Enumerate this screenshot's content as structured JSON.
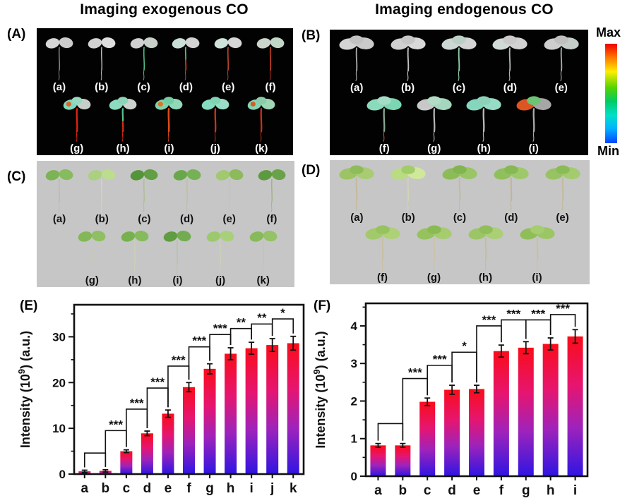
{
  "titles": {
    "left": "Imaging exogenous CO",
    "right": "Imaging endogenous CO"
  },
  "colorbar": {
    "max": "Max",
    "min": "Min",
    "stops": [
      "#ee0000 0%",
      "#ff7700 14%",
      "#ffee00 28%",
      "#55d400 44%",
      "#00cc66 58%",
      "#00e0c8 72%",
      "#00b4ff 85%",
      "#0044ff 100%"
    ]
  },
  "panels": {
    "a": {
      "letter": "(A)",
      "bg": "#020202",
      "label_color": "#ffffff",
      "rows": [
        [
          {
            "label": "(a)",
            "leaves": [
              "#d6d6d6",
              "#cbcbcb"
            ],
            "stem": "#8f8f8f",
            "sw": 1.6
          },
          {
            "label": "(b)",
            "leaves": [
              "#d2d2d2",
              "#dedede"
            ],
            "stem": "#c6c6c6",
            "sw": 1.6
          },
          {
            "label": "(c)",
            "leaves": [
              "#d0d0d0",
              "#c9cfc9"
            ],
            "stem": "#4fc08a",
            "sw": 1.8
          },
          {
            "label": "(d)",
            "leaves": [
              "#c8ded6",
              "#d2d2d2"
            ],
            "stem": "#cf3f22",
            "stem2": "#55bd85",
            "sw": 2.0
          },
          {
            "label": "(e)",
            "leaves": [
              "#cfe2da",
              "#d6d6d6"
            ],
            "stem": "#b8422b",
            "sw": 2.0
          },
          {
            "label": "(f)",
            "leaves": [
              "#ccd4cc",
              "#c2d6c8"
            ],
            "stem": "#c23b24",
            "sw": 2.0
          }
        ],
        [
          {
            "label": "(g)",
            "leaves": [
              "#7fd9bd",
              "#c7cdc9",
              "#96d9c0"
            ],
            "stem": "#e02414",
            "spot": "#e05c20",
            "sw": 2.6
          },
          {
            "label": "(h)",
            "leaves": [
              "#8cdcc2",
              "#ccd2ce",
              "#8ed4b8"
            ],
            "stem": "#d52a16",
            "stem2": "#58c088",
            "sw": 2.6
          },
          {
            "label": "(i)",
            "leaves": [
              "#7ed2ac",
              "#90d8b8",
              "#74cca4"
            ],
            "stem": "#e04a14",
            "spot": "#e0701e",
            "sw": 2.8
          },
          {
            "label": "(j)",
            "leaves": [
              "#85dcbe",
              "#9cdcc6",
              "#7fd4b4"
            ],
            "stem": "#d93016",
            "sw": 2.6
          },
          {
            "label": "(k)",
            "leaves": [
              "#82d6b6",
              "#9ed8b2",
              "#8accaa"
            ],
            "stem": "#cf3018",
            "spot": "#d9561c",
            "sw": 2.6
          }
        ]
      ]
    },
    "b": {
      "letter": "(B)",
      "bg": "#020202",
      "label_color": "#ffffff",
      "rows": [
        [
          {
            "label": "(a)",
            "leaves": [
              "#d4d4d4",
              "#cacaca",
              "#c2c2c2"
            ],
            "stem": "#a8a8a8",
            "sw": 1.8,
            "big": true
          },
          {
            "label": "(b)",
            "leaves": [
              "#d0d0d0",
              "#d8d8d8",
              "#c6c6c6"
            ],
            "stem": "#c2c2c2",
            "sw": 1.8,
            "big": true
          },
          {
            "label": "(c)",
            "leaves": [
              "#ccd6d2",
              "#d4d4d4",
              "#bccfc6"
            ],
            "stem": "#8fcbaa",
            "sw": 1.8,
            "big": true
          },
          {
            "label": "(d)",
            "leaves": [
              "#d0dad6",
              "#d2d2d2",
              "#cacaca"
            ],
            "stem": "#b4b4b4",
            "sw": 1.8,
            "big": true
          },
          {
            "label": "(e)",
            "leaves": [
              "#cecece",
              "#c6cec9",
              "#c0c0c0"
            ],
            "stem": "#acacac",
            "sw": 1.8,
            "big": true
          }
        ],
        [
          {
            "label": "(f)",
            "leaves": [
              "#8adabc",
              "#7cd6b4",
              "#a4dcc6"
            ],
            "stem": "#88a894",
            "root": "#b8512a",
            "sw": 2.2,
            "big": true
          },
          {
            "label": "(g)",
            "leaves": [
              "#c8c8c8",
              "#a4d6c0",
              "#b2dcc6"
            ],
            "stem": "#b4b4b4",
            "sw": 2.2,
            "big": true
          },
          {
            "label": "(h)",
            "leaves": [
              "#84d6bc",
              "#96dcc6",
              "#8cd2b8"
            ],
            "stem": "#bcbcbc",
            "sw": 2.2,
            "big": true
          },
          {
            "label": "(i)",
            "leaves": [
              "#dd5522",
              "#a6a6a6",
              "#6cc474"
            ],
            "stem": "#acacac",
            "sw": 2.2,
            "big": true
          }
        ]
      ]
    },
    "c": {
      "letter": "(C)",
      "bg": "#c6c6c6",
      "label_color": "#111111",
      "rows": [
        [
          {
            "label": "(a)",
            "leaves": [
              "#7cb354",
              "#86bb5e"
            ],
            "stem": "#b9bfa4",
            "sw": 1.8
          },
          {
            "label": "(b)",
            "leaves": [
              "#aad080",
              "#bcdc8e"
            ],
            "stem": "#d2d6bc",
            "sw": 1.8
          },
          {
            "label": "(c)",
            "leaves": [
              "#55943a",
              "#619e44"
            ],
            "stem": "#aebf98",
            "sw": 1.8
          },
          {
            "label": "(d)",
            "leaves": [
              "#69a84a",
              "#76b156"
            ],
            "stem": "#b9c2a4",
            "sw": 1.8
          },
          {
            "label": "(e)",
            "leaves": [
              "#a2c870",
              "#8cba5c"
            ],
            "stem": "#c2c6aa",
            "sw": 1.8
          },
          {
            "label": "(f)",
            "leaves": [
              "#5d9940",
              "#6aa24a"
            ],
            "stem": "#a2b48c",
            "sw": 1.8
          }
        ],
        [
          {
            "label": "(g)",
            "leaves": [
              "#83b757",
              "#8fbf62"
            ],
            "stem": "#c6cab0",
            "sw": 1.8
          },
          {
            "label": "(h)",
            "leaves": [
              "#76b14e",
              "#85bb5c"
            ],
            "stem": "#ccd0b6",
            "sw": 1.8
          },
          {
            "label": "(i)",
            "leaves": [
              "#5f9c42",
              "#72ac50"
            ],
            "stem": "#b9c2a4",
            "sw": 1.8
          },
          {
            "label": "(j)",
            "leaves": [
              "#9cc86e",
              "#a8d07a"
            ],
            "stem": "#ccd0b6",
            "sw": 1.8
          },
          {
            "label": "(k)",
            "leaves": [
              "#86ba5a",
              "#94c266"
            ],
            "stem": "#c2c6ac",
            "sw": 1.8
          }
        ]
      ]
    },
    "d": {
      "letter": "(D)",
      "bg": "#c6c6c6",
      "label_color": "#111111",
      "rows": [
        [
          {
            "label": "(a)",
            "leaves": [
              "#9cc464",
              "#a9cc72",
              "#8fbc5a"
            ],
            "stem": "#c6b99c",
            "sw": 2.0,
            "big": true
          },
          {
            "label": "(b)",
            "leaves": [
              "#b9dc82",
              "#cfe89a",
              "#a2cc6a"
            ],
            "stem": "#d2d2b4",
            "sw": 2.0,
            "big": true
          },
          {
            "label": "(c)",
            "leaves": [
              "#8cbc58",
              "#99c566",
              "#82b450"
            ],
            "stem": "#c2bb9e",
            "sw": 2.0,
            "big": true
          },
          {
            "label": "(d)",
            "leaves": [
              "#90c05c",
              "#9ec96a",
              "#86b854"
            ],
            "stem": "#bfb699",
            "sw": 2.0,
            "big": true
          },
          {
            "label": "(e)",
            "leaves": [
              "#97c362",
              "#a4cb6e",
              "#8bbb57"
            ],
            "stem": "#c2bb9e",
            "sw": 2.0,
            "big": true
          }
        ],
        [
          {
            "label": "(f)",
            "leaves": [
              "#a2c96a",
              "#aed176",
              "#96c260"
            ],
            "stem": "#c9bfa2",
            "sw": 2.0,
            "big": true
          },
          {
            "label": "(g)",
            "leaves": [
              "#96c25e",
              "#a6cc6e",
              "#8aba54"
            ],
            "stem": "#ccc2a6",
            "sw": 2.0,
            "big": true
          },
          {
            "label": "(h)",
            "leaves": [
              "#9cc666",
              "#aacf74",
              "#90be5a"
            ],
            "stem": "#c6bca0",
            "sw": 2.0,
            "big": true
          },
          {
            "label": "(i)",
            "leaves": [
              "#8fbe58",
              "#9cc666",
              "#a6cc70"
            ],
            "stem": "#c9bfa2",
            "sw": 2.0,
            "big": true
          }
        ]
      ]
    },
    "e": {
      "letter": "(E)"
    },
    "f": {
      "letter": "(F)"
    }
  },
  "chart_data": [
    {
      "id": "E",
      "type": "bar",
      "categories": [
        "a",
        "b",
        "c",
        "d",
        "e",
        "f",
        "g",
        "h",
        "i",
        "j",
        "k"
      ],
      "values": [
        0.6,
        0.7,
        5.0,
        8.9,
        13.2,
        19.0,
        23.0,
        26.3,
        27.5,
        28.2,
        28.6
      ],
      "errors": [
        0.25,
        0.25,
        0.3,
        0.5,
        0.8,
        1.0,
        1.1,
        1.3,
        1.3,
        1.4,
        1.5
      ],
      "ylabel_pre": "Intensity (10",
      "ylabel_sup": "9",
      "ylabel_post": ") (a.u.)",
      "yticks": [
        0,
        10,
        20,
        30
      ],
      "minor_step": 5,
      "ylim": [
        0,
        37
      ],
      "grid": false,
      "bar_gradient": [
        "#fa0c19",
        "#e61570",
        "#9e23bb",
        "#2f15e2"
      ],
      "significance": [
        {
          "pair": [
            0,
            1
          ],
          "label": "",
          "level": 4.6
        },
        {
          "pair": [
            1,
            2
          ],
          "label": "***",
          "level": 9.5
        },
        {
          "pair": [
            2,
            3
          ],
          "label": "***",
          "level": 14.2
        },
        {
          "pair": [
            3,
            4
          ],
          "label": "***",
          "level": 18.8
        },
        {
          "pair": [
            4,
            5
          ],
          "label": "***",
          "level": 23.6
        },
        {
          "pair": [
            5,
            6
          ],
          "label": "***",
          "level": 27.8
        },
        {
          "pair": [
            6,
            7
          ],
          "label": "***",
          "level": 30.5
        },
        {
          "pair": [
            7,
            8
          ],
          "label": "**",
          "level": 31.8
        },
        {
          "pair": [
            8,
            9
          ],
          "label": "**",
          "level": 32.8
        },
        {
          "pair": [
            9,
            10
          ],
          "label": "*",
          "level": 33.9
        }
      ]
    },
    {
      "id": "F",
      "type": "bar",
      "categories": [
        "a",
        "b",
        "c",
        "d",
        "e",
        "f",
        "g",
        "h",
        "i"
      ],
      "values": [
        0.82,
        0.82,
        1.98,
        2.3,
        2.32,
        3.33,
        3.42,
        3.52,
        3.72
      ],
      "errors": [
        0.05,
        0.05,
        0.1,
        0.12,
        0.1,
        0.16,
        0.16,
        0.16,
        0.18
      ],
      "ylabel_pre": "Intensity (10",
      "ylabel_sup": "9",
      "ylabel_post": ") (a.u.)",
      "yticks": [
        0,
        1,
        2,
        3,
        4
      ],
      "minor_step": 0.5,
      "ylim": [
        0,
        4.6
      ],
      "grid": false,
      "bar_gradient": [
        "#fa0c19",
        "#e61570",
        "#9e23bb",
        "#2f15e2"
      ],
      "significance": [
        {
          "pair": [
            0,
            1
          ],
          "label": "",
          "level": 1.4
        },
        {
          "pair": [
            1,
            2
          ],
          "label": "***",
          "level": 2.6
        },
        {
          "pair": [
            2,
            3
          ],
          "label": "***",
          "level": 2.95
        },
        {
          "pair": [
            3,
            4
          ],
          "label": "*",
          "level": 3.3
        },
        {
          "pair": [
            4,
            5
          ],
          "label": "***",
          "level": 4.0
        },
        {
          "pair": [
            5,
            6
          ],
          "label": "***",
          "level": 4.16
        },
        {
          "pair": [
            6,
            7
          ],
          "label": "***",
          "level": 4.16
        },
        {
          "pair": [
            7,
            8
          ],
          "label": "***",
          "level": 4.3
        }
      ]
    }
  ]
}
